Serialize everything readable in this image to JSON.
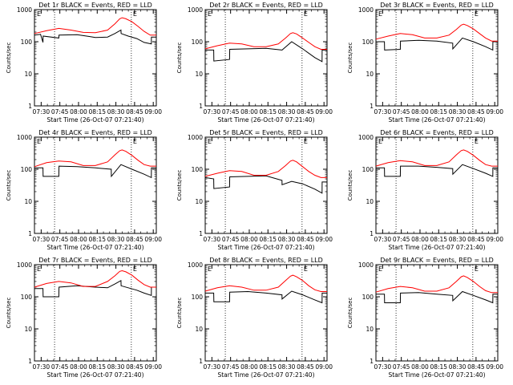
{
  "chart_data": [
    {
      "type": "line",
      "title": "Det 1r BLACK = Events, RED = LLD",
      "xlabel": "Start Time (26-Oct-07 07:21:40)",
      "ylabel": "Counts/sec",
      "xticks": [
        "07:30",
        "07:45",
        "08:00",
        "08:15",
        "08:30",
        "08:45",
        "09:00"
      ],
      "yticks": [
        "1",
        "10",
        "100",
        "1000"
      ],
      "xlim": [
        0,
        100
      ],
      "ylim": [
        1,
        1000
      ],
      "log_y": true,
      "markers": [
        "E",
        "E"
      ],
      "series": [
        {
          "color": "#000000",
          "x": [
            0,
            5,
            7,
            7.1,
            20,
            20.1,
            35,
            45,
            50,
            60,
            66,
            71,
            71.1,
            77,
            84,
            90,
            95.9,
            96,
            100
          ],
          "y": [
            160,
            170,
            95,
            150,
            130,
            160,
            165,
            145,
            135,
            140,
            180,
            230,
            180,
            150,
            125,
            95,
            85,
            140,
            140
          ]
        },
        {
          "color": "#ff0000",
          "x": [
            0,
            10,
            20,
            30,
            40,
            50,
            60,
            66,
            70,
            72,
            75,
            80,
            85,
            90,
            95,
            100
          ],
          "y": [
            180,
            220,
            260,
            230,
            195,
            190,
            230,
            360,
            520,
            560,
            520,
            420,
            300,
            210,
            160,
            160
          ]
        }
      ]
    },
    {
      "type": "line",
      "title": "Det 2r BLACK = Events, RED = LLD",
      "xlabel": "Start Time (26-Oct-07 07:21:40)",
      "ylabel": "Counts/sec",
      "xticks": [
        "07:30",
        "07:45",
        "08:00",
        "08:15",
        "08:30",
        "08:45",
        "09:00"
      ],
      "yticks": [
        "1",
        "10",
        "100",
        "1000"
      ],
      "xlim": [
        0,
        100
      ],
      "ylim": [
        1,
        1000
      ],
      "log_y": true,
      "markers": [
        "E",
        "E"
      ],
      "series": [
        {
          "color": "#000000",
          "x": [
            0,
            7,
            7.1,
            20,
            20.1,
            35,
            50,
            63,
            63.1,
            71,
            80,
            90,
            95.9,
            96,
            100
          ],
          "y": [
            55,
            55,
            25,
            28,
            58,
            60,
            62,
            55,
            55,
            100,
            60,
            32,
            24,
            55,
            55
          ]
        },
        {
          "color": "#ff0000",
          "x": [
            0,
            10,
            20,
            30,
            40,
            50,
            60,
            66,
            70,
            72,
            75,
            80,
            85,
            90,
            95,
            100
          ],
          "y": [
            60,
            75,
            90,
            85,
            70,
            70,
            85,
            130,
            180,
            190,
            175,
            130,
            95,
            70,
            58,
            58
          ]
        }
      ]
    },
    {
      "type": "line",
      "title": "Det 3r BLACK = Events, RED = LLD",
      "xlabel": "Start Time (26-Oct-07 07:21:40)",
      "ylabel": "Counts/sec",
      "xticks": [
        "07:30",
        "07:45",
        "08:00",
        "08:15",
        "08:30",
        "08:45",
        "09:00"
      ],
      "yticks": [
        "1",
        "10",
        "100",
        "1000"
      ],
      "xlim": [
        0,
        100
      ],
      "ylim": [
        1,
        1000
      ],
      "log_y": true,
      "markers": [
        "E",
        "E"
      ],
      "series": [
        {
          "color": "#000000",
          "x": [
            0,
            7,
            7.1,
            20,
            20.1,
            35,
            50,
            63,
            63.1,
            71,
            80,
            90,
            95.9,
            96,
            100
          ],
          "y": [
            100,
            100,
            55,
            58,
            105,
            110,
            105,
            90,
            60,
            130,
            100,
            70,
            55,
            100,
            100
          ]
        },
        {
          "color": "#ff0000",
          "x": [
            0,
            10,
            20,
            30,
            40,
            50,
            60,
            66,
            70,
            72,
            75,
            80,
            85,
            90,
            95,
            100
          ],
          "y": [
            120,
            150,
            180,
            165,
            130,
            130,
            160,
            240,
            330,
            350,
            320,
            250,
            180,
            130,
            105,
            105
          ]
        }
      ]
    },
    {
      "type": "line",
      "title": "Det 4r BLACK = Events, RED = LLD",
      "xlabel": "Start Time (26-Oct-07 07:21:40)",
      "ylabel": "Counts/sec",
      "xticks": [
        "07:30",
        "07:45",
        "08:00",
        "08:15",
        "08:30",
        "08:45",
        "09:00"
      ],
      "yticks": [
        "1",
        "10",
        "100",
        "1000"
      ],
      "xlim": [
        0,
        100
      ],
      "ylim": [
        1,
        1000
      ],
      "log_y": true,
      "markers": [
        "E",
        "E"
      ],
      "series": [
        {
          "color": "#000000",
          "x": [
            0,
            7,
            7.1,
            20,
            20.1,
            35,
            50,
            63,
            63.1,
            71,
            80,
            90,
            95.9,
            96,
            100
          ],
          "y": [
            110,
            110,
            60,
            60,
            125,
            120,
            110,
            100,
            60,
            140,
            100,
            70,
            55,
            110,
            110
          ]
        },
        {
          "color": "#ff0000",
          "x": [
            0,
            10,
            20,
            30,
            40,
            50,
            60,
            66,
            70,
            72,
            75,
            80,
            85,
            90,
            95,
            100
          ],
          "y": [
            120,
            160,
            180,
            170,
            130,
            130,
            170,
            280,
            380,
            400,
            360,
            270,
            190,
            140,
            125,
            125
          ]
        }
      ]
    },
    {
      "type": "line",
      "title": "Det 5r BLACK = Events, RED = LLD",
      "xlabel": "Start Time (26-Oct-07 07:21:40)",
      "ylabel": "Counts/sec",
      "xticks": [
        "07:30",
        "07:45",
        "08:00",
        "08:15",
        "08:30",
        "08:45",
        "09:00"
      ],
      "yticks": [
        "1",
        "10",
        "100",
        "1000"
      ],
      "xlim": [
        0,
        100
      ],
      "ylim": [
        1,
        1000
      ],
      "log_y": true,
      "markers": [
        "E",
        "E"
      ],
      "series": [
        {
          "color": "#000000",
          "x": [
            0,
            7,
            7.1,
            20,
            20.1,
            35,
            50,
            63,
            63.1,
            71,
            80,
            90,
            95.9,
            96,
            100
          ],
          "y": [
            55,
            50,
            25,
            28,
            58,
            60,
            62,
            45,
            33,
            42,
            35,
            24,
            18,
            40,
            40
          ]
        },
        {
          "color": "#ff0000",
          "x": [
            0,
            10,
            20,
            30,
            40,
            50,
            60,
            66,
            70,
            72,
            75,
            80,
            85,
            90,
            95,
            100
          ],
          "y": [
            60,
            75,
            90,
            85,
            65,
            65,
            85,
            130,
            180,
            190,
            170,
            120,
            85,
            65,
            55,
            55
          ]
        }
      ]
    },
    {
      "type": "line",
      "title": "Det 6r BLACK = Events, RED = LLD",
      "xlabel": "Start Time (26-Oct-07 07:21:40)",
      "ylabel": "Counts/sec",
      "xticks": [
        "07:30",
        "07:45",
        "08:00",
        "08:15",
        "08:30",
        "08:45",
        "09:00"
      ],
      "yticks": [
        "1",
        "10",
        "100",
        "1000"
      ],
      "xlim": [
        0,
        100
      ],
      "ylim": [
        1,
        1000
      ],
      "log_y": true,
      "markers": [
        "E",
        "E"
      ],
      "series": [
        {
          "color": "#000000",
          "x": [
            0,
            7,
            7.1,
            20,
            20.1,
            35,
            50,
            63,
            63.1,
            71,
            80,
            90,
            95.9,
            96,
            100
          ],
          "y": [
            110,
            110,
            60,
            60,
            125,
            125,
            115,
            105,
            70,
            140,
            105,
            75,
            60,
            110,
            110
          ]
        },
        {
          "color": "#ff0000",
          "x": [
            0,
            10,
            20,
            30,
            40,
            50,
            60,
            66,
            70,
            72,
            75,
            80,
            85,
            90,
            95,
            100
          ],
          "y": [
            125,
            160,
            185,
            170,
            130,
            130,
            170,
            280,
            380,
            400,
            360,
            270,
            190,
            140,
            125,
            125
          ]
        }
      ]
    },
    {
      "type": "line",
      "title": "Det 7r BLACK = Events, RED = LLD",
      "xlabel": "Start Time (26-Oct-07 07:21:40)",
      "ylabel": "Counts/sec",
      "xticks": [
        "07:30",
        "07:45",
        "08:00",
        "08:15",
        "08:30",
        "08:45",
        "09:00"
      ],
      "yticks": [
        "1",
        "10",
        "100",
        "1000"
      ],
      "xlim": [
        0,
        100
      ],
      "ylim": [
        1,
        1000
      ],
      "log_y": true,
      "markers": [
        "E",
        "E"
      ],
      "series": [
        {
          "color": "#000000",
          "x": [
            0,
            7,
            7.1,
            20,
            20.1,
            35,
            50,
            60,
            66,
            71,
            71.1,
            77,
            84,
            90,
            95.9,
            96,
            100
          ],
          "y": [
            180,
            180,
            100,
            100,
            200,
            220,
            200,
            190,
            250,
            320,
            220,
            190,
            160,
            130,
            110,
            200,
            200
          ]
        },
        {
          "color": "#ff0000",
          "x": [
            0,
            10,
            20,
            30,
            40,
            50,
            60,
            66,
            70,
            72,
            75,
            80,
            85,
            90,
            95,
            100
          ],
          "y": [
            200,
            260,
            300,
            270,
            210,
            210,
            300,
            450,
            620,
            650,
            600,
            470,
            330,
            240,
            200,
            200
          ]
        }
      ]
    },
    {
      "type": "line",
      "title": "Det 8r BLACK = Events, RED = LLD",
      "xlabel": "Start Time (26-Oct-07 07:21:40)",
      "ylabel": "Counts/sec",
      "xticks": [
        "07:30",
        "07:45",
        "08:00",
        "08:15",
        "08:30",
        "08:45",
        "09:00"
      ],
      "yticks": [
        "1",
        "10",
        "100",
        "1000"
      ],
      "xlim": [
        0,
        100
      ],
      "ylim": [
        1,
        1000
      ],
      "log_y": true,
      "markers": [
        "E",
        "E"
      ],
      "series": [
        {
          "color": "#000000",
          "x": [
            0,
            7,
            7.1,
            20,
            20.1,
            35,
            50,
            63,
            63.1,
            71,
            80,
            90,
            95.9,
            96,
            100
          ],
          "y": [
            130,
            130,
            70,
            70,
            140,
            145,
            130,
            115,
            85,
            150,
            115,
            80,
            65,
            130,
            130
          ]
        },
        {
          "color": "#ff0000",
          "x": [
            0,
            10,
            20,
            30,
            40,
            50,
            60,
            66,
            70,
            72,
            75,
            80,
            85,
            90,
            95,
            100
          ],
          "y": [
            150,
            190,
            220,
            200,
            160,
            160,
            200,
            320,
            440,
            470,
            420,
            320,
            220,
            165,
            145,
            145
          ]
        }
      ]
    },
    {
      "type": "line",
      "title": "Det 9r BLACK = Events, RED = LLD",
      "xlabel": "Start Time (26-Oct-07 07:21:40)",
      "ylabel": "Counts/sec",
      "xticks": [
        "07:30",
        "07:45",
        "08:00",
        "08:15",
        "08:30",
        "08:45",
        "09:00"
      ],
      "yticks": [
        "1",
        "10",
        "100",
        "1000"
      ],
      "xlim": [
        0,
        100
      ],
      "ylim": [
        1,
        1000
      ],
      "log_y": true,
      "markers": [
        "E",
        "E"
      ],
      "series": [
        {
          "color": "#000000",
          "x": [
            0,
            7,
            7.1,
            20,
            20.1,
            35,
            50,
            63,
            63.1,
            71,
            80,
            90,
            95.9,
            96,
            100
          ],
          "y": [
            120,
            120,
            65,
            65,
            130,
            135,
            120,
            110,
            75,
            145,
            110,
            80,
            65,
            120,
            120
          ]
        },
        {
          "color": "#ff0000",
          "x": [
            0,
            10,
            20,
            30,
            40,
            50,
            60,
            66,
            70,
            72,
            75,
            80,
            85,
            90,
            95,
            100
          ],
          "y": [
            140,
            180,
            210,
            190,
            150,
            150,
            190,
            300,
            420,
            450,
            400,
            300,
            210,
            155,
            135,
            135
          ]
        }
      ]
    }
  ]
}
